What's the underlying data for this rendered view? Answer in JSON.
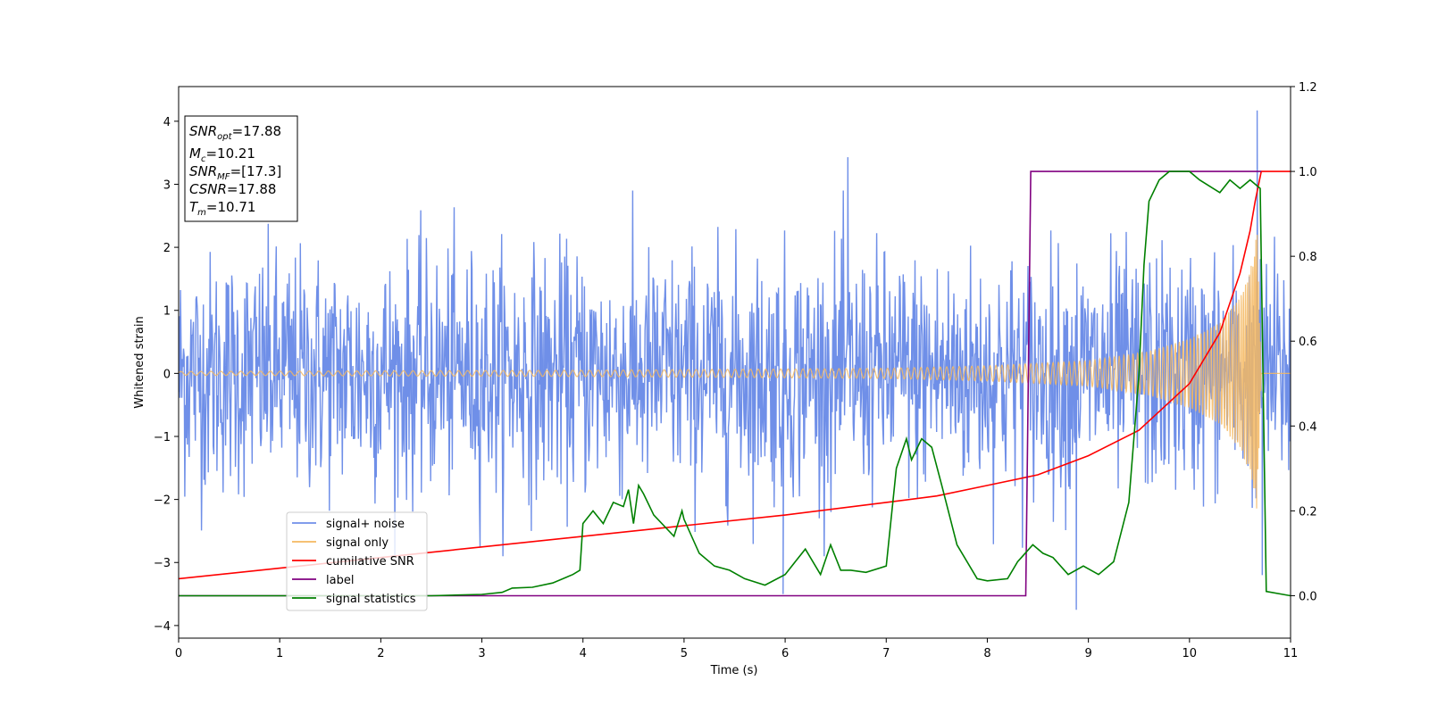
{
  "chart_data": {
    "type": "line",
    "title": "",
    "xlabel": "Time (s)",
    "ylabel": "Whitened strain",
    "y2label": "",
    "xlim": [
      0,
      11
    ],
    "ylim": [
      -4.2,
      4.55
    ],
    "y2lim": [
      -0.1,
      1.2
    ],
    "x_ticks": [
      "0",
      "1",
      "2",
      "3",
      "4",
      "5",
      "6",
      "7",
      "8",
      "9",
      "10",
      "11"
    ],
    "y_ticks": [
      "−4",
      "−3",
      "−2",
      "−1",
      "0",
      "1",
      "2",
      "3",
      "4"
    ],
    "y2_ticks": [
      "0.0",
      "0.2",
      "0.4",
      "0.6",
      "0.8",
      "1.0",
      "1.2"
    ],
    "grid": false,
    "legend_position": "lower-left",
    "annotation_box": {
      "position": "top-left",
      "lines": [
        {
          "base": "SNR",
          "sub": "opt",
          "value": "=17.88"
        },
        {
          "base": "M",
          "sub": "c",
          "value": "=10.21"
        },
        {
          "base": "SNR",
          "sub": "MF",
          "value": "=[17.3]"
        },
        {
          "base": "CSNR",
          "sub": "",
          "value": "=17.88"
        },
        {
          "base": "T",
          "sub": "m",
          "value": "=10.71"
        }
      ]
    },
    "series": [
      {
        "name": "signal+ noise",
        "color": "#6f8fe8",
        "axis": "left",
        "kind": "noise",
        "amplitude_std": 0.95,
        "x_range": [
          0,
          11
        ],
        "sample_count": 1800,
        "notable_peaks": [
          [
            6.62,
            3.43
          ],
          [
            10.67,
            4.17
          ],
          [
            8.88,
            -3.75
          ],
          [
            5.98,
            -3.5
          ],
          [
            10.72,
            -3.2
          ]
        ]
      },
      {
        "name": "signal only",
        "color": "#f5b861",
        "axis": "left",
        "kind": "chirp",
        "x_range": [
          0,
          10.71
        ],
        "envelope": [
          [
            0,
            0.03
          ],
          [
            4,
            0.05
          ],
          [
            7,
            0.08
          ],
          [
            8,
            0.12
          ],
          [
            9,
            0.2
          ],
          [
            9.6,
            0.35
          ],
          [
            10,
            0.55
          ],
          [
            10.3,
            0.8
          ],
          [
            10.5,
            1.2
          ],
          [
            10.6,
            1.6
          ],
          [
            10.67,
            2.3
          ],
          [
            10.71,
            0
          ]
        ]
      },
      {
        "name": "cumilative SNR",
        "color": "#ff0000",
        "axis": "right",
        "kind": "line",
        "points": [
          [
            0,
            0.04
          ],
          [
            1,
            0.065
          ],
          [
            2,
            0.09
          ],
          [
            3,
            0.115
          ],
          [
            4,
            0.14
          ],
          [
            5,
            0.165
          ],
          [
            6,
            0.19
          ],
          [
            7,
            0.22
          ],
          [
            7.5,
            0.235
          ],
          [
            8,
            0.26
          ],
          [
            8.5,
            0.285
          ],
          [
            9,
            0.33
          ],
          [
            9.5,
            0.39
          ],
          [
            10,
            0.5
          ],
          [
            10.3,
            0.62
          ],
          [
            10.5,
            0.76
          ],
          [
            10.6,
            0.86
          ],
          [
            10.65,
            0.93
          ],
          [
            10.71,
            1.0
          ],
          [
            11,
            1.0
          ]
        ]
      },
      {
        "name": "label",
        "color": "#800080",
        "axis": "right",
        "kind": "line",
        "points": [
          [
            0,
            0.0
          ],
          [
            8.38,
            0.0
          ],
          [
            8.43,
            1.0
          ],
          [
            10.71,
            1.0
          ],
          [
            10.71,
            1.0
          ]
        ]
      },
      {
        "name": "signal statistics",
        "color": "#008000",
        "axis": "right",
        "kind": "line",
        "points": [
          [
            0,
            0.0
          ],
          [
            2.5,
            0.0
          ],
          [
            3.0,
            0.003
          ],
          [
            3.2,
            0.008
          ],
          [
            3.3,
            0.018
          ],
          [
            3.5,
            0.02
          ],
          [
            3.7,
            0.03
          ],
          [
            3.9,
            0.05
          ],
          [
            3.97,
            0.06
          ],
          [
            4.0,
            0.17
          ],
          [
            4.1,
            0.2
          ],
          [
            4.2,
            0.17
          ],
          [
            4.3,
            0.22
          ],
          [
            4.4,
            0.21
          ],
          [
            4.45,
            0.25
          ],
          [
            4.5,
            0.17
          ],
          [
            4.55,
            0.26
          ],
          [
            4.6,
            0.24
          ],
          [
            4.7,
            0.19
          ],
          [
            4.9,
            0.14
          ],
          [
            4.98,
            0.2
          ],
          [
            5.0,
            0.18
          ],
          [
            5.15,
            0.1
          ],
          [
            5.3,
            0.07
          ],
          [
            5.45,
            0.06
          ],
          [
            5.6,
            0.04
          ],
          [
            5.8,
            0.025
          ],
          [
            6.0,
            0.05
          ],
          [
            6.1,
            0.08
          ],
          [
            6.2,
            0.11
          ],
          [
            6.35,
            0.05
          ],
          [
            6.45,
            0.12
          ],
          [
            6.55,
            0.06
          ],
          [
            6.65,
            0.06
          ],
          [
            6.8,
            0.055
          ],
          [
            7.0,
            0.07
          ],
          [
            7.1,
            0.3
          ],
          [
            7.2,
            0.37
          ],
          [
            7.25,
            0.32
          ],
          [
            7.35,
            0.37
          ],
          [
            7.45,
            0.35
          ],
          [
            7.55,
            0.26
          ],
          [
            7.7,
            0.12
          ],
          [
            7.9,
            0.04
          ],
          [
            8.0,
            0.035
          ],
          [
            8.2,
            0.04
          ],
          [
            8.3,
            0.08
          ],
          [
            8.45,
            0.12
          ],
          [
            8.55,
            0.1
          ],
          [
            8.65,
            0.09
          ],
          [
            8.8,
            0.05
          ],
          [
            8.95,
            0.07
          ],
          [
            9.1,
            0.05
          ],
          [
            9.25,
            0.08
          ],
          [
            9.4,
            0.22
          ],
          [
            9.5,
            0.52
          ],
          [
            9.55,
            0.78
          ],
          [
            9.6,
            0.93
          ],
          [
            9.7,
            0.98
          ],
          [
            9.8,
            1.0
          ],
          [
            10.0,
            1.0
          ],
          [
            10.1,
            0.98
          ],
          [
            10.3,
            0.95
          ],
          [
            10.4,
            0.98
          ],
          [
            10.5,
            0.96
          ],
          [
            10.6,
            0.98
          ],
          [
            10.7,
            0.96
          ],
          [
            10.76,
            0.01
          ],
          [
            11,
            0.0
          ]
        ]
      }
    ]
  }
}
